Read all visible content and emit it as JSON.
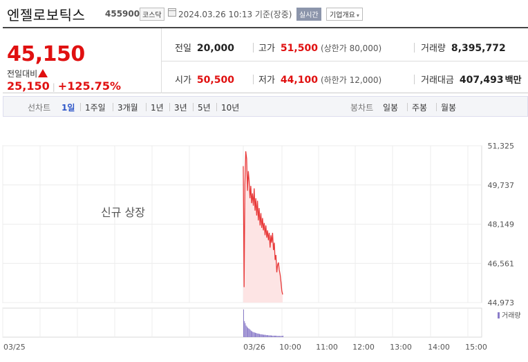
{
  "header": {
    "name": "엔젤로보틱스",
    "code": "455900",
    "market": "코스닥",
    "datetime": "2024.03.26 10:13 기준(장중)",
    "realtime_label": "실시간",
    "company_info_label": "기업개요",
    "chevron": "▾"
  },
  "quote": {
    "price": "45,150",
    "change_label": "전일대비",
    "change": "25,150",
    "change_pct": "+125.75%",
    "prev_close_label": "전일",
    "prev_close": "20,000",
    "high_label": "고가",
    "high": "51,500",
    "upper_limit": "(상한가 80,000)",
    "volume_label": "거래량",
    "volume": "8,395,772",
    "open_label": "시가",
    "open": "50,500",
    "low_label": "저가",
    "low": "44,100",
    "lower_limit": "(하한가 12,000)",
    "value_label": "거래대금",
    "value": "407,493",
    "value_unit": "백만"
  },
  "periods": {
    "line_label": "선차트",
    "line_items": [
      "1일",
      "1주일",
      "3개월",
      "1년",
      "3년",
      "5년",
      "10년"
    ],
    "selected": "1일",
    "candle_label": "봉차트",
    "candle_items": [
      "일봉",
      "주봉",
      "월봉"
    ]
  },
  "chart": {
    "annotation": "신규 상장",
    "volume_legend": "거래량",
    "colors": {
      "line": "#e83a3a",
      "fill": "#fde4e4",
      "volume": "#8a7cc9"
    }
  },
  "chart_data": {
    "type": "line",
    "y_ticks": [
      "51,325",
      "49,737",
      "48,149",
      "46,561",
      "44,973"
    ],
    "ylim": [
      44973,
      51325
    ],
    "x_ticks": [
      "03/25",
      "03/26",
      "10:00",
      "11:00",
      "12:00",
      "13:00",
      "14:00",
      "15:00"
    ],
    "series": [
      {
        "values": [
          50500,
          45600,
          49800,
          51100,
          50800,
          49500,
          50300,
          49900,
          49200,
          49700,
          49000,
          49400,
          48900,
          49600,
          48700,
          49200,
          48500,
          49100,
          48300,
          48800,
          48100,
          48600,
          48000,
          48400,
          47900,
          48200,
          47700,
          48100,
          47600,
          47900,
          47500,
          47800,
          47200,
          47700,
          47400,
          47800,
          47100,
          47400,
          46700,
          46900,
          46200,
          46500,
          46600,
          46300,
          46100,
          45800,
          45450,
          45300
        ]
      }
    ],
    "volume": [
      95,
      55,
      48,
      40,
      36,
      32,
      30,
      28,
      25,
      22,
      20,
      18,
      17,
      16,
      15,
      14,
      13,
      12,
      12,
      11,
      10,
      10,
      9,
      9,
      8,
      8,
      8,
      7,
      7,
      7,
      6,
      6,
      6,
      6,
      5,
      5,
      5,
      5,
      5,
      5,
      4,
      4,
      4,
      4,
      4,
      4,
      4,
      5
    ]
  }
}
